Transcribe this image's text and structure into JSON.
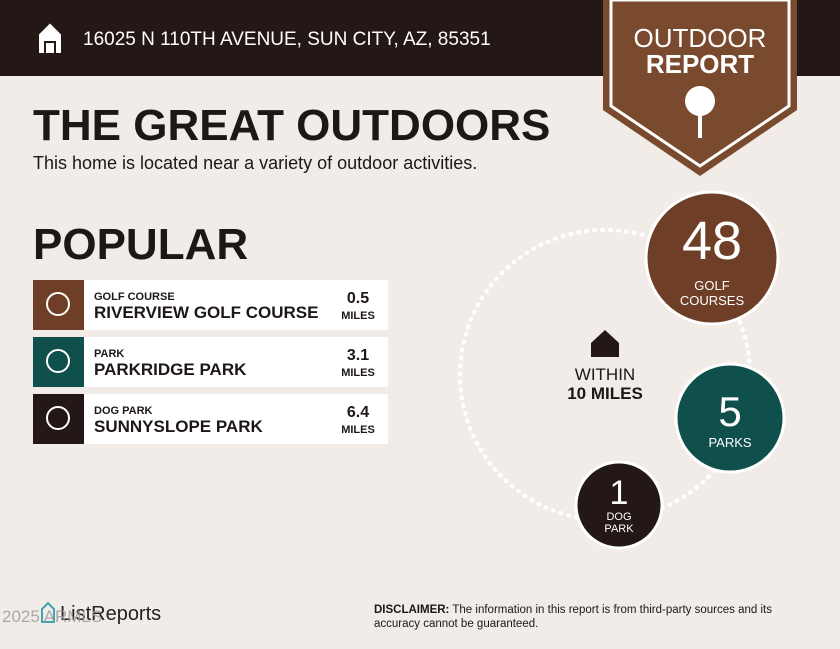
{
  "header": {
    "address": "16025 N 110TH AVENUE, SUN CITY, AZ, 85351"
  },
  "badge": {
    "line1": "OUTDOOR",
    "line2": "REPORT"
  },
  "title": "THE GREAT OUTDOORS",
  "subtitle": "This home is located near a variety of outdoor activities.",
  "popular": {
    "heading": "POPULAR",
    "items": [
      {
        "category": "GOLF COURSE",
        "name": "RIVERVIEW GOLF COURSE",
        "distance": 0.5,
        "unit": "MILES"
      },
      {
        "category": "PARK",
        "name": "PARKRIDGE PARK",
        "distance": 3.1,
        "unit": "MILES"
      },
      {
        "category": "DOG PARK",
        "name": "SUNNYSLOPE PARK",
        "distance": 6.4,
        "unit": "MILES"
      }
    ]
  },
  "radius": {
    "line1": "WITHIN",
    "line2": "10 MILES"
  },
  "counts": [
    {
      "value": 48,
      "label": "GOLF COURSES"
    },
    {
      "value": 5,
      "label": "PARKS"
    },
    {
      "value": 1,
      "label": "DOG PARK"
    }
  ],
  "footer": {
    "logo": "ListReports",
    "watermark": "2025 ARMLS",
    "disclaimer_label": "DISCLAIMER:",
    "disclaimer": "The information in this report is from third-party sources and its accuracy cannot be guaranteed."
  }
}
